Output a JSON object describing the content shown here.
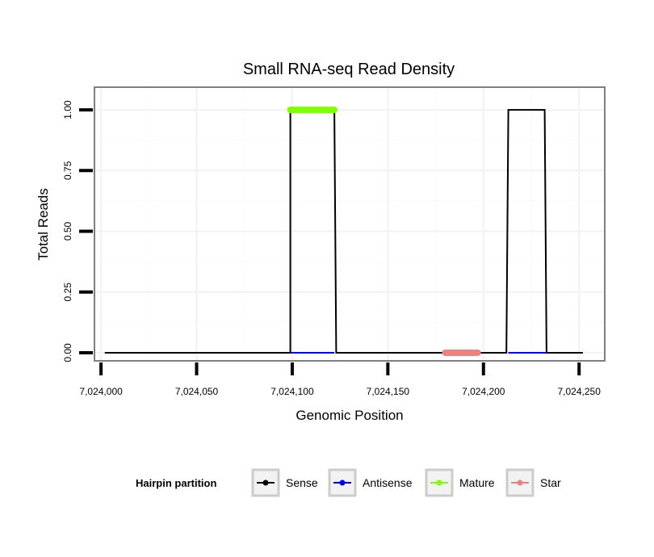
{
  "chart_data": {
    "type": "line",
    "title": "Small RNA-seq Read Density",
    "xlabel": "Genomic Position",
    "ylabel": "Total Reads",
    "xlim": [
      7023997,
      7024263
    ],
    "ylim": [
      -0.03,
      1.09
    ],
    "x_ticks": [
      7024000,
      7024050,
      7024100,
      7024150,
      7024200,
      7024250
    ],
    "x_tick_labels": [
      "7,024,000",
      "7,024,050",
      "7,024,100",
      "7,024,150",
      "7,024,200",
      "7,024,250"
    ],
    "y_ticks": [
      0,
      0.25,
      0.5,
      0.75,
      1.0
    ],
    "y_tick_labels": [
      "0.00",
      "0.25",
      "0.50",
      "0.75",
      "1.00"
    ],
    "grid": true,
    "legend": {
      "title": "Hairpin partition",
      "position": "bottom"
    },
    "series": [
      {
        "name": "Sense",
        "color": "#000000",
        "points": [
          [
            7024002,
            0
          ],
          [
            7024099,
            0
          ],
          [
            7024099,
            1
          ],
          [
            7024122,
            1
          ],
          [
            7024123,
            0
          ],
          [
            7024212,
            0
          ],
          [
            7024213,
            1
          ],
          [
            7024232,
            1
          ],
          [
            7024233,
            0
          ],
          [
            7024252,
            0
          ]
        ]
      },
      {
        "name": "Antisense",
        "color": "#0000ff",
        "points": [
          [
            7024099,
            0
          ],
          [
            7024122,
            0
          ],
          [
            7024213,
            0
          ],
          [
            7024233,
            0
          ]
        ]
      },
      {
        "name": "Mature",
        "color": "#7fff00",
        "points": [
          [
            7024099,
            1.0
          ],
          [
            7024122,
            1.0
          ]
        ]
      },
      {
        "name": "Star",
        "color": "#f08080",
        "points": [
          [
            7024180,
            0
          ],
          [
            7024197,
            0
          ]
        ]
      }
    ]
  }
}
